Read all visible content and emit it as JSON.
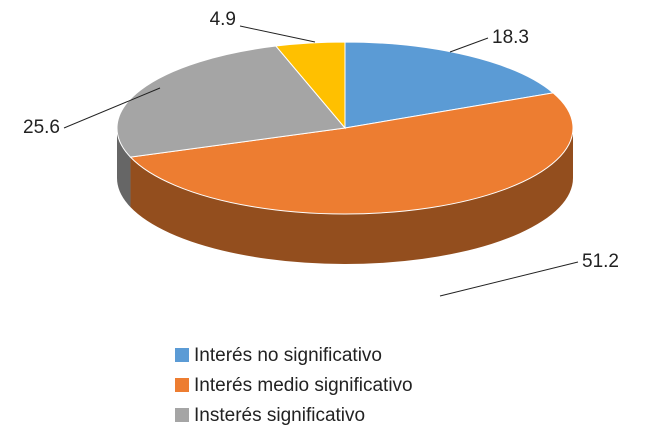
{
  "chart_data": {
    "type": "pie",
    "categories": [
      "Interés no significativo",
      "Interés medio significativo",
      "Insterés significativo",
      null
    ],
    "values": [
      18.3,
      51.2,
      25.6,
      4.9
    ],
    "colors": [
      "#5b9bd5",
      "#ed7d31",
      "#a5a5a5",
      "#ffc000"
    ],
    "legend": "bottom"
  }
}
